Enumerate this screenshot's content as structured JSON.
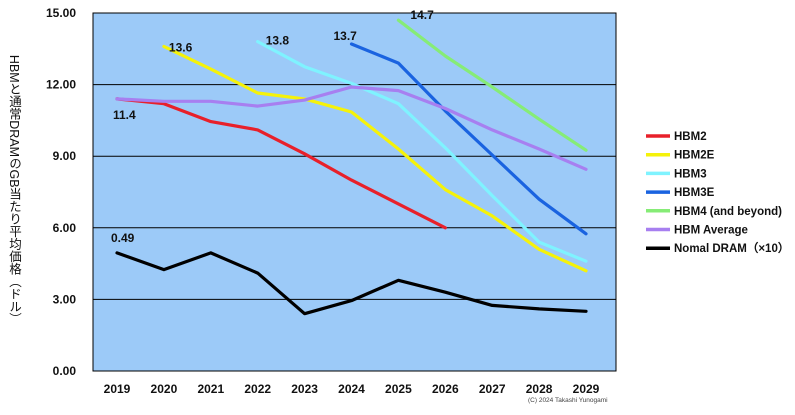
{
  "chart_data": {
    "type": "line",
    "title": "",
    "xlabel": "",
    "ylabel": "HBMと通常DRAMのGB当たり平均価格（ドル）",
    "ylim": [
      0,
      15
    ],
    "yticks": [
      "0.00",
      "3.00",
      "6.00",
      "9.00",
      "12.00",
      "15.00"
    ],
    "categories": [
      "2019",
      "2020",
      "2021",
      "2022",
      "2023",
      "2024",
      "2025",
      "2026",
      "2027",
      "2028",
      "2029"
    ],
    "legend_position": "right",
    "series": [
      {
        "name": "HBM2",
        "color": "#e8202a",
        "values": [
          11.4,
          11.2,
          10.45,
          10.1,
          9.1,
          8.0,
          7.0,
          6.0,
          null,
          null,
          null
        ]
      },
      {
        "name": "HBM2E",
        "color": "#f5f20a",
        "values": [
          null,
          13.6,
          12.65,
          11.65,
          11.4,
          10.85,
          9.3,
          7.6,
          6.5,
          5.1,
          4.2
        ]
      },
      {
        "name": "HBM3",
        "color": "#7ff3ff",
        "values": [
          null,
          null,
          null,
          13.8,
          12.75,
          12.05,
          11.2,
          9.35,
          7.35,
          5.4,
          4.6
        ]
      },
      {
        "name": "HBM3E",
        "color": "#1a63e0",
        "values": [
          null,
          null,
          null,
          null,
          null,
          13.7,
          12.9,
          10.9,
          9.05,
          7.2,
          5.75
        ]
      },
      {
        "name": "HBM4 (and beyond)",
        "color": "#86ec76",
        "values": [
          null,
          null,
          null,
          null,
          null,
          null,
          14.7,
          13.2,
          11.9,
          10.55,
          9.25
        ]
      },
      {
        "name": "HBM Average",
        "color": "#a77ff0",
        "values": [
          11.4,
          11.3,
          11.3,
          11.1,
          11.35,
          11.9,
          11.75,
          11.0,
          10.1,
          9.3,
          8.45
        ]
      },
      {
        "name": "Nomal DRAM（×10）",
        "color": "#000000",
        "values": [
          4.95,
          4.25,
          4.95,
          4.1,
          2.4,
          2.95,
          3.8,
          3.3,
          2.75,
          2.6,
          2.5
        ]
      }
    ],
    "annotations": [
      {
        "text": "13.6",
        "series": 1,
        "index": 1
      },
      {
        "text": "13.8",
        "series": 2,
        "index": 3
      },
      {
        "text": "13.7",
        "series": 3,
        "index": 5
      },
      {
        "text": "14.7",
        "series": 4,
        "index": 6
      },
      {
        "text": "11.4",
        "series": 0,
        "index": 0
      },
      {
        "text": "0.49",
        "series": 6,
        "index": 0
      }
    ],
    "credit": "(C) 2024 Takashi Yunogami"
  }
}
